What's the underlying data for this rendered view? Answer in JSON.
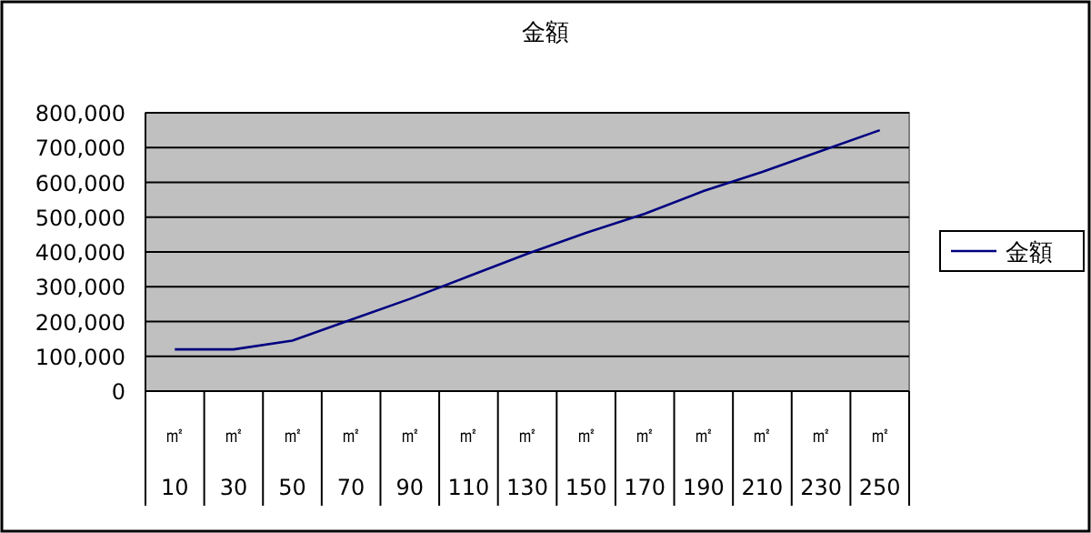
{
  "chart_data": {
    "type": "line",
    "title": "金額",
    "categories": [
      "㎡ 10",
      "㎡ 30",
      "㎡ 50",
      "㎡ 70",
      "㎡ 90",
      "㎡ 110",
      "㎡ 130",
      "㎡ 150",
      "㎡ 170",
      "㎡ 190",
      "㎡ 210",
      "㎡ 230",
      "㎡ 250"
    ],
    "series": [
      {
        "name": "金額",
        "color": "#000080",
        "values": [
          120000,
          120000,
          145000,
          205000,
          265000,
          330000,
          395000,
          455000,
          510000,
          575000,
          630000,
          690000,
          750000
        ]
      }
    ],
    "ylim": [
      0,
      800000
    ],
    "yticks": [
      {
        "value": 0,
        "label": "0"
      },
      {
        "value": 100000,
        "label": "100,000"
      },
      {
        "value": 200000,
        "label": "200,000"
      },
      {
        "value": 300000,
        "label": "300,000"
      },
      {
        "value": 400000,
        "label": "400,000"
      },
      {
        "value": 500000,
        "label": "500,000"
      },
      {
        "value": 600000,
        "label": "600,000"
      },
      {
        "value": 700000,
        "label": "700,000"
      },
      {
        "value": 800000,
        "label": "800,000"
      }
    ],
    "grid": "y",
    "legend": "right",
    "marker": "none",
    "line_style": "solid"
  }
}
